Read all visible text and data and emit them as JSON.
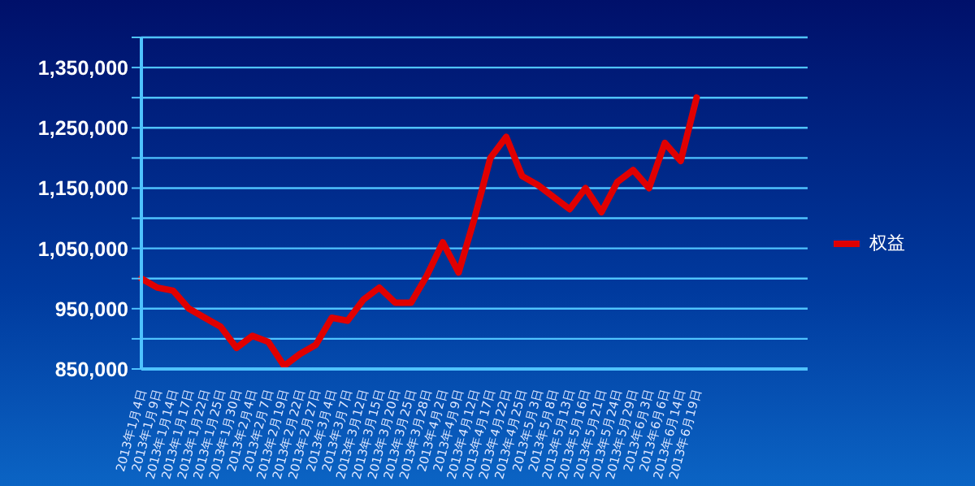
{
  "chart_data": {
    "type": "line",
    "categories": [
      "2013年1月4日",
      "2013年1月9日",
      "2013年1月14日",
      "2013年1月17日",
      "2013年1月22日",
      "2013年1月25日",
      "2013年1月30日",
      "2013年2月4日",
      "2013年2月7日",
      "2013年2月19日",
      "2013年2月22日",
      "2013年2月27日",
      "2013年3月4日",
      "2013年3月7日",
      "2013年3月12日",
      "2013年3月15日",
      "2013年3月20日",
      "2013年3月25日",
      "2013年3月28日",
      "2013年4月2日",
      "2013年4月9日",
      "2013年4月12日",
      "2013年4月17日",
      "2013年4月22日",
      "2013年4月25日",
      "2013年5月3日",
      "2013年5月8日",
      "2013年5月13日",
      "2013年5月16日",
      "2013年5月21日",
      "2013年5月24日",
      "2013年5月29日",
      "2013年6月3日",
      "2013年6月6日",
      "2013年6月14日",
      "2013年6月19日",
      null,
      null,
      null,
      null,
      null,
      null,
      null
    ],
    "series": [
      {
        "name": "权益",
        "color": "#e00000",
        "values": [
          1000000,
          985000,
          980000,
          950000,
          935000,
          920000,
          885000,
          905000,
          895000,
          855000,
          875000,
          890000,
          935000,
          930000,
          965000,
          985000,
          960000,
          960000,
          1005000,
          1060000,
          1010000,
          1100000,
          1200000,
          1235000,
          1170000,
          1155000,
          1135000,
          1115000,
          1150000,
          1110000,
          1160000,
          1180000,
          1150000,
          1225000,
          1195000,
          1300000,
          null,
          null,
          null,
          null,
          null,
          null,
          null
        ]
      }
    ],
    "ylim": [
      850000,
      1400000
    ],
    "yticks": [
      {
        "value": 850000,
        "label": "850,000"
      },
      {
        "value": 900000,
        "label": null
      },
      {
        "value": 950000,
        "label": "950,000"
      },
      {
        "value": 1000000,
        "label": null
      },
      {
        "value": 1050000,
        "label": "1,050,000"
      },
      {
        "value": 1100000,
        "label": null
      },
      {
        "value": 1150000,
        "label": "1,150,000"
      },
      {
        "value": 1200000,
        "label": null
      },
      {
        "value": 1250000,
        "label": "1,250,000"
      },
      {
        "value": 1300000,
        "label": null
      },
      {
        "value": 1350000,
        "label": "1,350,000"
      },
      {
        "value": 1400000,
        "label": null
      }
    ],
    "grid": "y",
    "legend": "right",
    "marker": "none",
    "line_style": "solid"
  }
}
